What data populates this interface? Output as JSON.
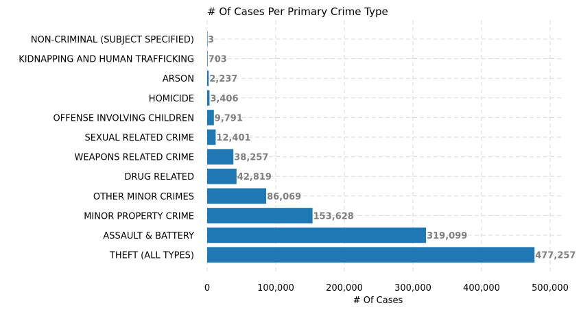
{
  "chart_data": {
    "type": "bar",
    "orientation": "horizontal",
    "title": "# Of Cases Per Primary Crime Type",
    "xlabel": "# Of Cases",
    "ylabel": "",
    "xlim": [
      0,
      520000
    ],
    "xticks": [
      0,
      100000,
      200000,
      300000,
      400000,
      500000
    ],
    "xtick_labels": [
      "0",
      "100,000",
      "200,000",
      "300,000",
      "400,000",
      "500,000"
    ],
    "grid": "on (dashed, both axes)",
    "bar_color": "#1f77b4",
    "label_color": "#7f7f7f",
    "categories": [
      "NON-CRIMINAL (SUBJECT SPECIFIED)",
      "KIDNAPPING AND HUMAN TRAFFICKING",
      "ARSON",
      "HOMICIDE",
      "OFFENSE INVOLVING CHILDREN",
      "SEXUAL RELATED CRIME",
      "WEAPONS RELATED CRIME",
      "DRUG RELATED",
      "OTHER MINOR CRIMES",
      "MINOR PROPERTY CRIME",
      "ASSAULT & BATTERY",
      "THEFT (ALL TYPES)"
    ],
    "values": [
      3,
      703,
      2237,
      3406,
      9791,
      12401,
      38257,
      42819,
      86069,
      153628,
      319099,
      477257
    ],
    "value_labels": [
      "3",
      "703",
      "2,237",
      "3,406",
      "9,791",
      "12,401",
      "38,257",
      "42,819",
      "86,069",
      "153,628",
      "319,099",
      "477,257"
    ]
  }
}
